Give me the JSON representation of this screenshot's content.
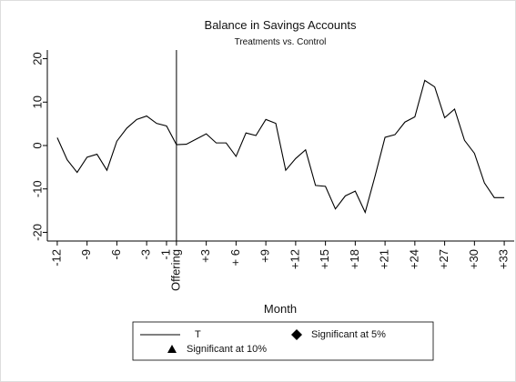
{
  "chart_data": {
    "type": "line",
    "title": "Balance in Savings Accounts",
    "subtitle": "Treatments vs. Control",
    "x_label": "Month",
    "x": [
      -12,
      -11,
      -10,
      -9,
      -8,
      -7,
      -6,
      -5,
      -4,
      -3,
      -2,
      -1,
      0,
      1,
      2,
      3,
      4,
      5,
      6,
      7,
      8,
      9,
      10,
      11,
      12,
      13,
      14,
      15,
      16,
      17,
      18,
      19,
      20,
      21,
      22,
      23,
      24,
      25,
      26,
      27,
      28,
      29,
      30,
      31,
      32,
      33
    ],
    "series": [
      {
        "name": "T",
        "color": "#000000",
        "values": [
          1.8,
          -3.3,
          -6.2,
          -2.7,
          -2,
          -5.7,
          1,
          4,
          6,
          6.8,
          5.1,
          4.5,
          0.2,
          0.3,
          1.5,
          2.7,
          0.6,
          0.6,
          -2.5,
          2.9,
          2.3,
          6,
          5.1,
          -5.7,
          -3,
          -1,
          -9.2,
          -9.4,
          -14.6,
          -11.6,
          -10.5,
          -15.4,
          -7,
          1.9,
          2.5,
          5.4,
          6.6,
          15,
          13.5,
          6.4,
          8.4,
          1.2,
          -1.8,
          -8.6,
          -12,
          -12
        ]
      }
    ],
    "legend_extra": [
      {
        "label": "Significant at 5%",
        "marker": "diamond"
      },
      {
        "label": "Significant at 10%",
        "marker": "triangle"
      }
    ],
    "reference_x": 0,
    "xlim": [
      -13,
      34
    ],
    "xticks": [
      -12,
      -9,
      -6,
      -3,
      -1,
      {
        "value": 0,
        "label": "Offering"
      },
      {
        "value": 3,
        "label": "+3"
      },
      {
        "value": 6,
        "label": "+ 6"
      },
      {
        "value": 9,
        "label": "+9"
      },
      {
        "value": 12,
        "label": "+12"
      },
      {
        "value": 15,
        "label": "+15"
      },
      {
        "value": 18,
        "label": "+18"
      },
      {
        "value": 21,
        "label": "+21"
      },
      {
        "value": 24,
        "label": "+24"
      },
      {
        "value": 27,
        "label": "+27"
      },
      {
        "value": 30,
        "label": "+30"
      },
      {
        "value": 33,
        "label": "+33"
      }
    ],
    "ylim": [
      -22,
      22
    ],
    "yticks": [
      -20,
      -10,
      0,
      10,
      20
    ]
  }
}
